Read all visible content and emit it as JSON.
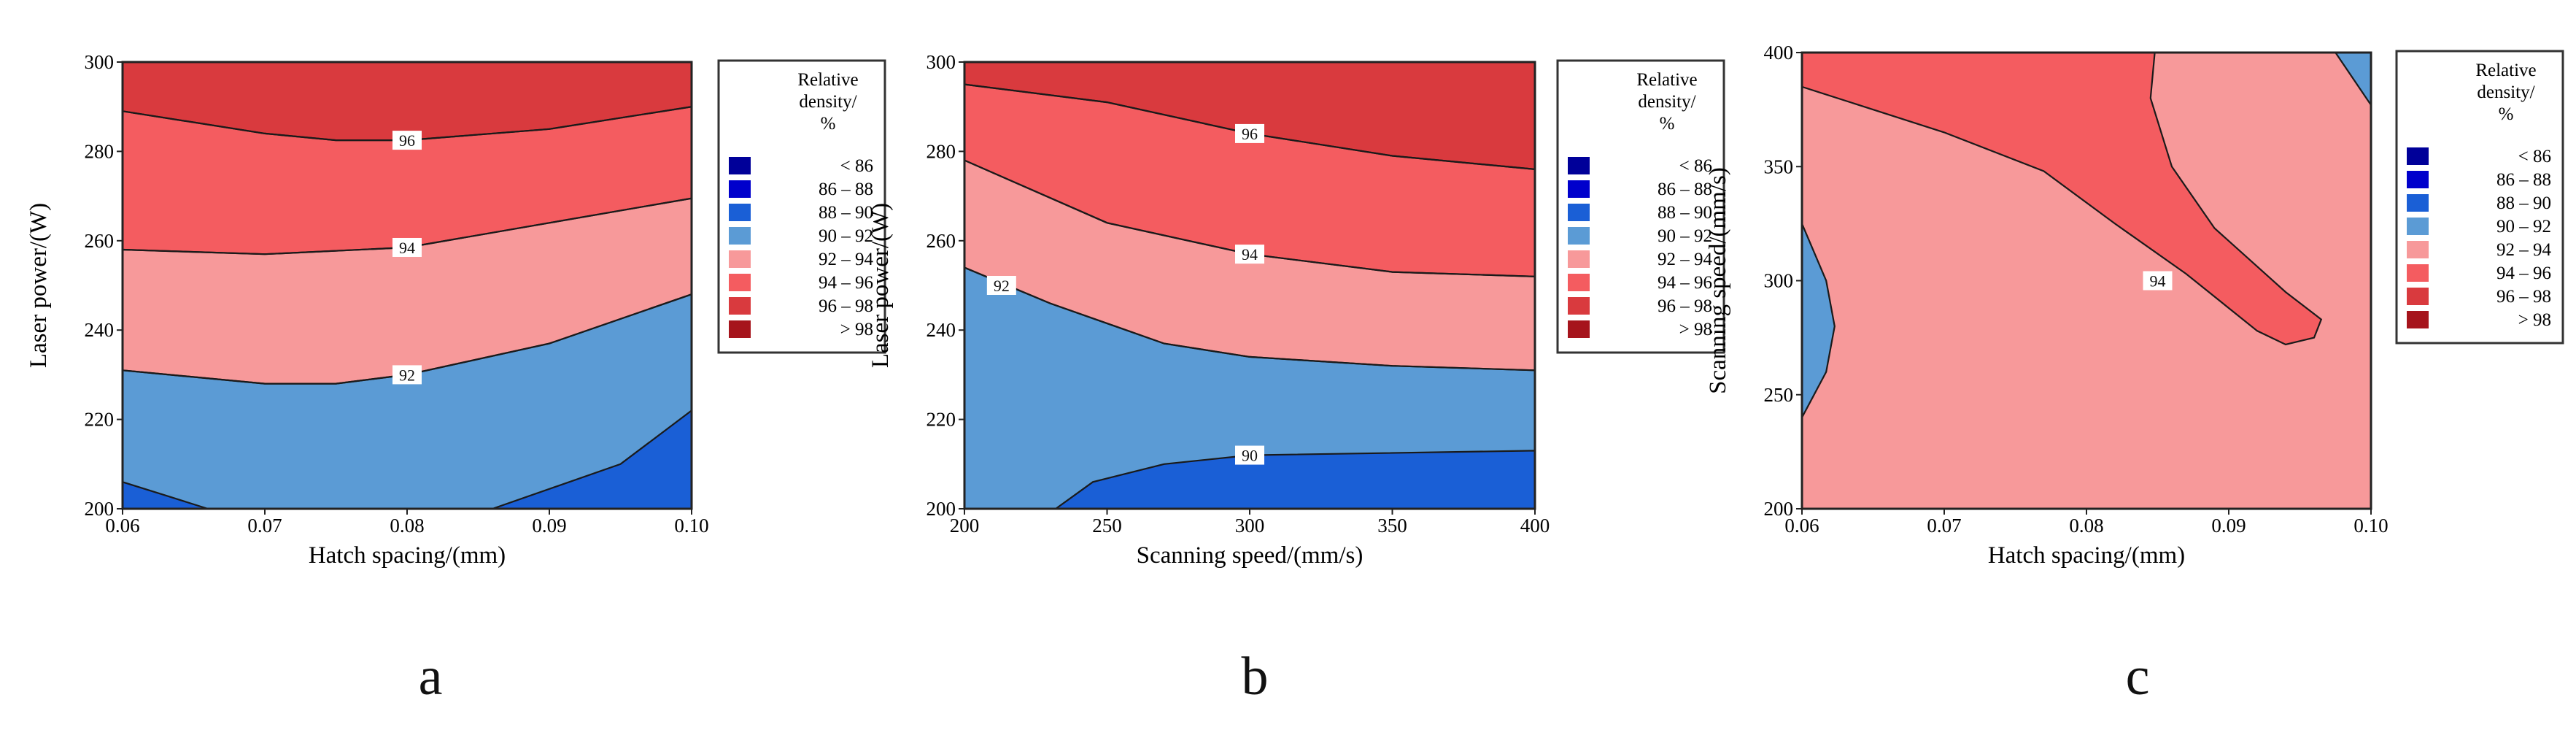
{
  "legend": {
    "title_lines": [
      "Relative",
      "density/",
      "%"
    ],
    "bins": [
      {
        "label": "< 86",
        "color": "#000099"
      },
      {
        "label": "86 – 88",
        "color": "#0000cc"
      },
      {
        "label": "88 – 90",
        "color": "#1a5fd6"
      },
      {
        "label": "90 – 92",
        "color": "#5b9bd5"
      },
      {
        "label": "92 – 94",
        "color": "#f7999a"
      },
      {
        "label": "94 – 96",
        "color": "#f45c60"
      },
      {
        "label": "96 – 98",
        "color": "#d93a3e"
      },
      {
        "label": "> 98",
        "color": "#a6141c"
      }
    ]
  },
  "chart_data": [
    {
      "type": "contour",
      "panel_label": "a",
      "xlabel": "Hatch spacing/(mm)",
      "ylabel": "Laser power/(W)",
      "xlim": [
        0.06,
        0.1
      ],
      "ylim": [
        200,
        300
      ],
      "x_ticks": [
        "0.06",
        "0.07",
        "0.08",
        "0.09",
        "0.10"
      ],
      "y_ticks": [
        "200",
        "220",
        "240",
        "260",
        "280",
        "300"
      ],
      "background_color": "#d93a3e",
      "regions": [
        {
          "color": "#f45c60",
          "boundary": [
            [
              0.06,
              289
            ],
            [
              0.07,
              284
            ],
            [
              0.075,
              282.5
            ],
            [
              0.08,
              282.5
            ],
            [
              0.09,
              285
            ],
            [
              0.1,
              290
            ]
          ]
        },
        {
          "color": "#f7999a",
          "boundary": [
            [
              0.06,
              258
            ],
            [
              0.07,
              257
            ],
            [
              0.08,
              258.5
            ],
            [
              0.09,
              264
            ],
            [
              0.1,
              269.5
            ]
          ]
        },
        {
          "color": "#5b9bd5",
          "boundary": [
            [
              0.06,
              231
            ],
            [
              0.07,
              228
            ],
            [
              0.075,
              228
            ],
            [
              0.08,
              230
            ],
            [
              0.09,
              237
            ],
            [
              0.1,
              248
            ]
          ]
        },
        {
          "color": "#1a5fd6",
          "polygon": [
            [
              0.06,
              200
            ],
            [
              0.06,
              206
            ],
            [
              0.063,
              203
            ],
            [
              0.066,
              200
            ]
          ]
        },
        {
          "color": "#1a5fd6",
          "polygon": [
            [
              0.086,
              200
            ],
            [
              0.095,
              210
            ],
            [
              0.1,
              222
            ],
            [
              0.1,
              200
            ]
          ]
        }
      ],
      "contour_labels": [
        {
          "text": "96",
          "x": 0.08,
          "y": 282.5
        },
        {
          "text": "94",
          "x": 0.08,
          "y": 258.5
        },
        {
          "text": "92",
          "x": 0.08,
          "y": 230
        }
      ]
    },
    {
      "type": "contour",
      "panel_label": "b",
      "xlabel": "Scanning speed/(mm/s)",
      "ylabel": "Laser power/(W)",
      "xlim": [
        200,
        400
      ],
      "ylim": [
        200,
        300
      ],
      "x_ticks": [
        "200",
        "250",
        "300",
        "350",
        "400"
      ],
      "y_ticks": [
        "200",
        "220",
        "240",
        "260",
        "280",
        "300"
      ],
      "background_color": "#d93a3e",
      "regions": [
        {
          "color": "#f45c60",
          "boundary": [
            [
              200,
              295
            ],
            [
              250,
              291
            ],
            [
              300,
              284
            ],
            [
              350,
              279
            ],
            [
              400,
              276
            ]
          ]
        },
        {
          "color": "#f7999a",
          "boundary": [
            [
              200,
              278
            ],
            [
              250,
              264
            ],
            [
              300,
              257
            ],
            [
              350,
              253
            ],
            [
              400,
              252
            ]
          ]
        },
        {
          "color": "#5b9bd5",
          "boundary": [
            [
              200,
              254
            ],
            [
              230,
              246
            ],
            [
              270,
              237
            ],
            [
              300,
              234
            ],
            [
              350,
              232
            ],
            [
              400,
              231
            ]
          ]
        },
        {
          "color": "#1a5fd6",
          "polygon": [
            [
              232,
              200
            ],
            [
              245,
              206
            ],
            [
              270,
              210
            ],
            [
              300,
              212
            ],
            [
              400,
              213
            ],
            [
              400,
              200
            ]
          ]
        }
      ],
      "contour_labels": [
        {
          "text": "96",
          "x": 300,
          "y": 284
        },
        {
          "text": "94",
          "x": 300,
          "y": 257
        },
        {
          "text": "92",
          "x": 213,
          "y": 250
        },
        {
          "text": "90",
          "x": 300,
          "y": 212
        }
      ]
    },
    {
      "type": "contour",
      "panel_label": "c",
      "xlabel": "Hatch spacing/(mm)",
      "ylabel": "Scanning speed/(mm/s)",
      "xlim": [
        0.06,
        0.1
      ],
      "ylim": [
        200,
        400
      ],
      "x_ticks": [
        "0.06",
        "0.07",
        "0.08",
        "0.09",
        "0.10"
      ],
      "y_ticks": [
        "200",
        "250",
        "300",
        "350",
        "400"
      ],
      "background_color": "#f7999a",
      "regions": [
        {
          "color": "#f45c60",
          "polygon": [
            [
              0.06,
              400
            ],
            [
              0.06,
              385
            ],
            [
              0.07,
              365
            ],
            [
              0.077,
              348
            ],
            [
              0.082,
              325
            ],
            [
              0.087,
              303
            ],
            [
              0.092,
              278
            ],
            [
              0.094,
              272
            ],
            [
              0.096,
              275
            ],
            [
              0.0965,
              283
            ],
            [
              0.094,
              295
            ],
            [
              0.089,
              323
            ],
            [
              0.086,
              350
            ],
            [
              0.0845,
              380
            ],
            [
              0.0848,
              400
            ]
          ]
        },
        {
          "color": "#5b9bd5",
          "polygon": [
            [
              0.06,
              325
            ],
            [
              0.0617,
              300
            ],
            [
              0.0623,
              280
            ],
            [
              0.0617,
              260
            ],
            [
              0.06,
              240
            ]
          ]
        },
        {
          "color": "#5b9bd5",
          "polygon": [
            [
              0.0975,
              400
            ],
            [
              0.1,
              377
            ],
            [
              0.1,
              400
            ]
          ]
        }
      ],
      "contour_labels": [
        {
          "text": "94",
          "x": 0.085,
          "y": 300
        }
      ]
    }
  ]
}
